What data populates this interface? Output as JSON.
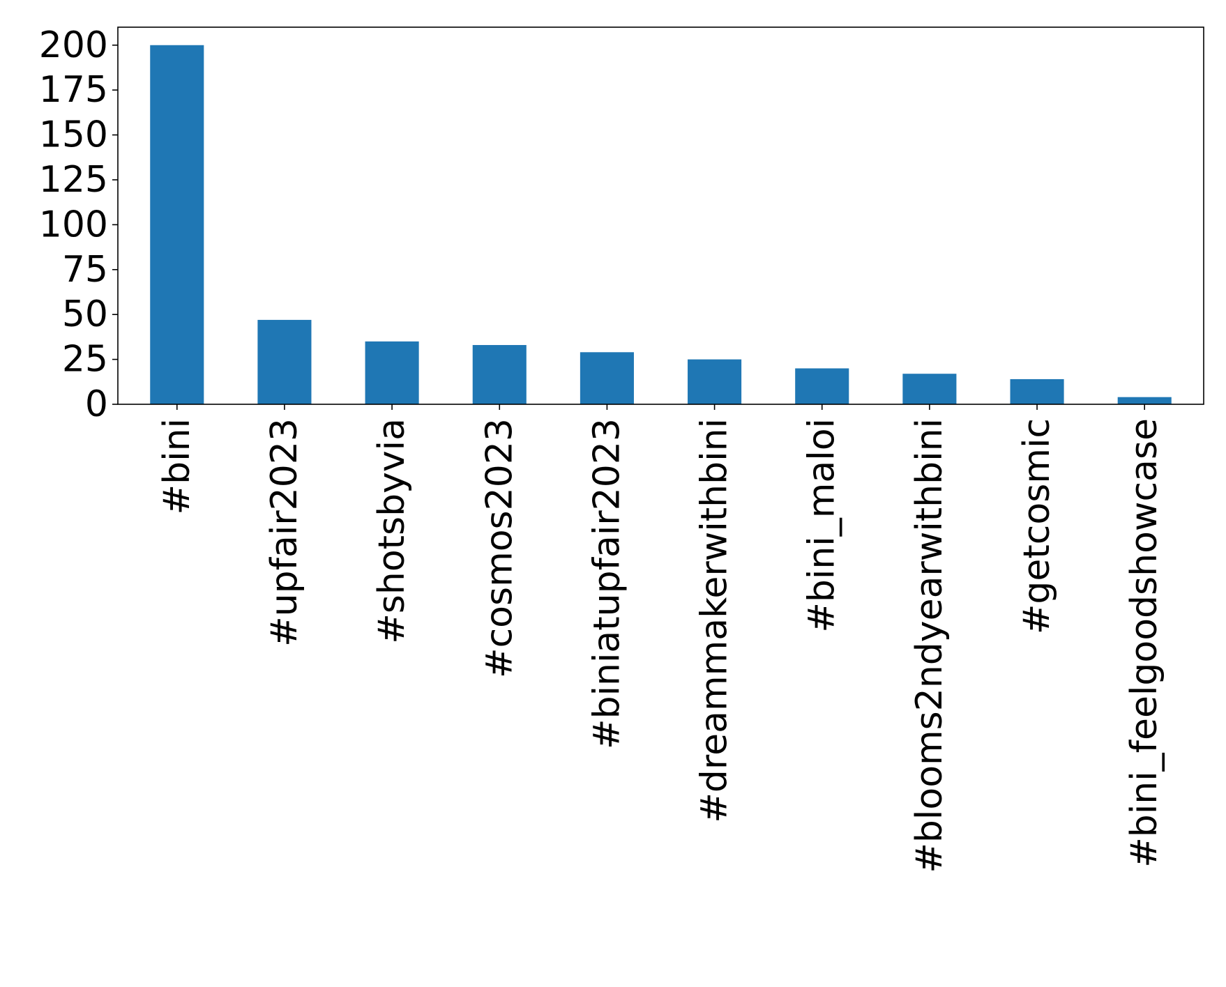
{
  "chart_data": {
    "type": "bar",
    "title": "",
    "xlabel": "",
    "ylabel": "",
    "categories": [
      "#bini",
      "#upfair2023",
      "#shotsbyvia",
      "#cosmos2023",
      "#biniatupfair2023",
      "#dreammakerwithbini",
      "#bini_maloi",
      "#blooms2ndyearwithbini",
      "#getcosmic",
      "#bini_feelgoodshowcase"
    ],
    "values": [
      200,
      47,
      35,
      33,
      29,
      25,
      20,
      17,
      14,
      4
    ],
    "ylim": [
      0,
      210
    ],
    "yticks": [
      "0",
      "25",
      "50",
      "75",
      "100",
      "125",
      "150",
      "175",
      "200"
    ],
    "bar_color": "#1f77b4",
    "grid": false,
    "legend": "none"
  }
}
